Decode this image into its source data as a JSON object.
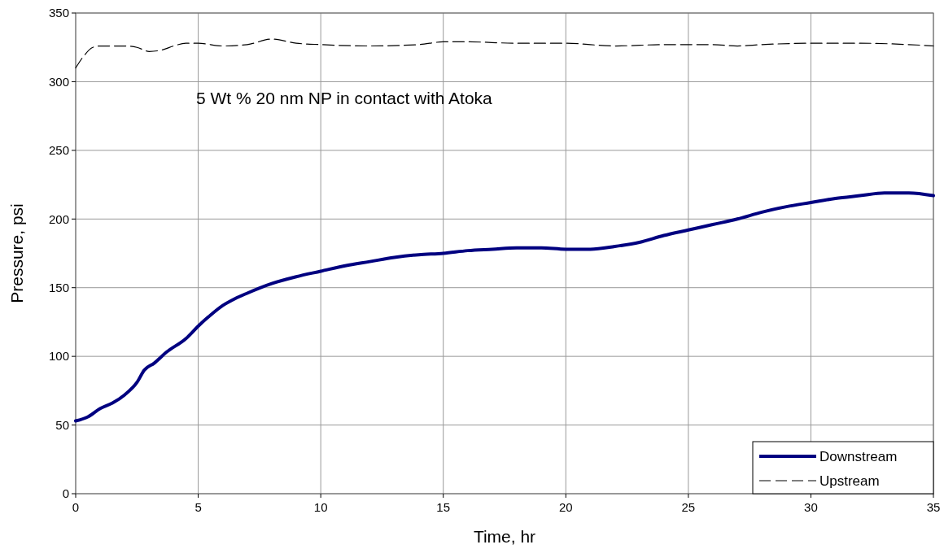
{
  "chart_data": {
    "type": "line",
    "xlabel": "Time, hr",
    "ylabel": "Pressure, psi",
    "xlim": [
      0,
      35
    ],
    "ylim": [
      0,
      350
    ],
    "xticks": [
      0,
      5,
      10,
      15,
      20,
      25,
      30,
      35
    ],
    "yticks": [
      0,
      50,
      100,
      150,
      200,
      250,
      300,
      350
    ],
    "grid": true,
    "legend": "bottom right",
    "annotations": [
      "5 Wt % 20 nm NP in contact with Atoka"
    ],
    "series": [
      {
        "name": "Downstream",
        "color": "#000080",
        "line_style": "solid",
        "x": [
          0,
          0.5,
          1,
          1.5,
          2,
          2.5,
          2.8,
          3.2,
          3.7,
          4.5,
          5,
          5.5,
          6,
          6.5,
          7,
          8,
          9,
          10,
          11,
          12,
          13,
          14,
          15,
          16,
          17,
          18,
          19,
          20,
          21,
          22,
          23,
          24,
          25,
          26,
          27,
          28,
          29,
          30,
          31,
          32,
          33,
          34,
          35
        ],
        "values": [
          53,
          56,
          62,
          66,
          72,
          81,
          90,
          95,
          103,
          113,
          122,
          130,
          137,
          142,
          146,
          153,
          158,
          162,
          166,
          169,
          172,
          174,
          175,
          177,
          178,
          179,
          179,
          178,
          178,
          180,
          183,
          188,
          192,
          196,
          200,
          205,
          209,
          212,
          215,
          217,
          219,
          219,
          217
        ]
      },
      {
        "name": "Upstream",
        "color": "#000000",
        "line_style": "dashed",
        "x": [
          0,
          0.3,
          0.7,
          1,
          2,
          2.5,
          3,
          3.5,
          4,
          4.5,
          5,
          6,
          7,
          8,
          9,
          10,
          12,
          14,
          15,
          16,
          18,
          20,
          22,
          24,
          26,
          27,
          28,
          30,
          32,
          34,
          35
        ],
        "values": [
          310,
          318,
          325,
          326,
          326,
          325,
          322,
          323,
          326,
          328,
          328,
          326,
          327,
          331,
          328,
          327,
          326,
          327,
          329,
          329,
          328,
          328,
          326,
          327,
          327,
          326,
          327,
          328,
          328,
          327,
          326
        ]
      }
    ]
  }
}
